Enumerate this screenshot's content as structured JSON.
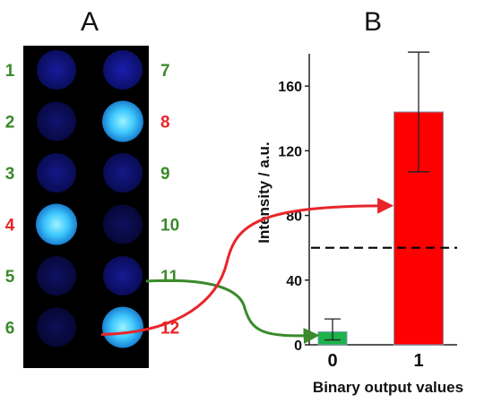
{
  "panel_a": {
    "label": "A",
    "wells": [
      {
        "num": "1",
        "label_color": "#3a8a2a",
        "intensity": 0.15
      },
      {
        "num": "2",
        "label_color": "#3a8a2a",
        "intensity": 0.08
      },
      {
        "num": "3",
        "label_color": "#3a8a2a",
        "intensity": 0.12
      },
      {
        "num": "4",
        "label_color": "#e8252a",
        "intensity": 1.0
      },
      {
        "num": "5",
        "label_color": "#3a8a2a",
        "intensity": 0.06
      },
      {
        "num": "6",
        "label_color": "#3a8a2a",
        "intensity": 0.04
      },
      {
        "num": "7",
        "label_color": "#3a8a2a",
        "intensity": 0.18
      },
      {
        "num": "8",
        "label_color": "#e8252a",
        "intensity": 1.0
      },
      {
        "num": "9",
        "label_color": "#3a8a2a",
        "intensity": 0.12
      },
      {
        "num": "10",
        "label_color": "#3a8a2a",
        "intensity": 0.05
      },
      {
        "num": "11",
        "label_color": "#3a8a2a",
        "intensity": 0.14
      },
      {
        "num": "12",
        "label_color": "#e8252a",
        "intensity": 1.0
      }
    ],
    "colors": {
      "background": "#000000",
      "well_dim": "#10158a",
      "well_bright": "#3ec8ff"
    }
  },
  "chart_data": {
    "type": "bar",
    "panel_label": "B",
    "categories": [
      "0",
      "1"
    ],
    "values": [
      8,
      144
    ],
    "error_low": [
      3,
      107
    ],
    "error_high": [
      16,
      181
    ],
    "bar_colors": [
      "#1db34a",
      "#ff0000"
    ],
    "threshold": 60,
    "threshold_style": "dashed",
    "ylabel": "Intensity / a.u.",
    "xlabel": "Binary output values",
    "ylim": [
      0,
      180
    ],
    "yticks": [
      0,
      40,
      80,
      120,
      160
    ],
    "grid": false
  },
  "arrows": [
    {
      "from_well": "11",
      "to_category": "0",
      "color": "#3a8a2a"
    },
    {
      "from_well": "12",
      "to_category": "1",
      "color": "#e8252a"
    }
  ]
}
